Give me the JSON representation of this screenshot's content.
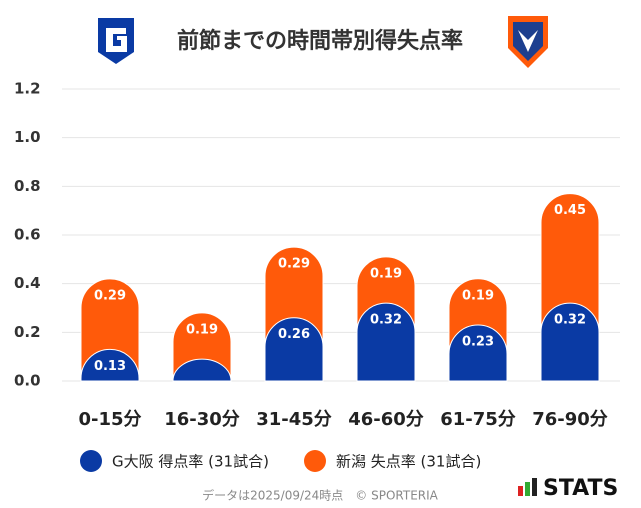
{
  "chart_data": {
    "type": "bar",
    "stacked": true,
    "title": "前節までの時間帯別得失点率",
    "categories": [
      "0-15分",
      "16-30分",
      "31-45分",
      "46-60分",
      "61-75分",
      "76-90分"
    ],
    "series": [
      {
        "name": "G大阪 得点率 (31試合)",
        "color": "#0a3aa4",
        "values": [
          0.13,
          0.09,
          0.26,
          0.32,
          0.23,
          0.32
        ],
        "value_labels": [
          "0.13",
          null,
          "0.26",
          "0.32",
          "0.23",
          "0.32"
        ]
      },
      {
        "name": "新潟 失点率 (31試合)",
        "color": "#ff5a0a",
        "values": [
          0.29,
          0.19,
          0.29,
          0.19,
          0.19,
          0.45
        ]
      }
    ],
    "ylim": [
      0,
      1.2
    ],
    "yticks": [
      {
        "value": 0,
        "label": "0.0"
      },
      0.2,
      0.4,
      0.6,
      0.8,
      {
        "value": 1,
        "label": "1.0"
      },
      1.2
    ],
    "grid": true,
    "footer": "データは2025/09/24時点　© SPORTERIA",
    "brand": "STATS"
  }
}
